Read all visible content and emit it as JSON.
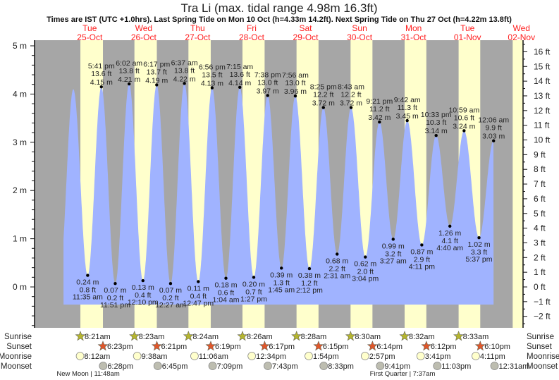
{
  "chart_data": {
    "type": "area",
    "title": "Tra Li (max. tidal range 4.98m 16.3ft)",
    "subtitle": "Times are IST (UTC +1.0hrs). Last Spring Tide on Mon 10 Oct (h=4.33m 14.2ft). Next Spring Tide on Thu 27 Oct (h=4.22m 13.8ft)",
    "days": [
      {
        "dow": "Tue",
        "date": "25-Oct"
      },
      {
        "dow": "Wed",
        "date": "26-Oct"
      },
      {
        "dow": "Thu",
        "date": "27-Oct"
      },
      {
        "dow": "Fri",
        "date": "28-Oct"
      },
      {
        "dow": "Sat",
        "date": "29-Oct"
      },
      {
        "dow": "Sun",
        "date": "30-Oct"
      },
      {
        "dow": "Mon",
        "date": "31-Oct"
      },
      {
        "dow": "Tue",
        "date": "01-Nov"
      },
      {
        "dow": "Wed",
        "date": "02-Nov"
      }
    ],
    "y_left": {
      "unit": "m",
      "ylim": [
        -0.5,
        5.3
      ],
      "ticks": [
        "5 m",
        "4 m",
        "3 m",
        "2 m",
        "1 m",
        "0 m"
      ],
      "tick_values": [
        5,
        4,
        3,
        2,
        1,
        0
      ]
    },
    "y_right": {
      "unit": "ft",
      "ticks": [
        "16 ft",
        "15 ft",
        "14 ft",
        "13 ft",
        "12 ft",
        "11 ft",
        "10 ft",
        "9 ft",
        "8 ft",
        "7 ft",
        "6 ft",
        "5 ft",
        "4 ft",
        "3 ft",
        "2 ft",
        "1 ft",
        "0 ft",
        "−1 ft",
        "−2 ft"
      ],
      "tick_values": [
        16,
        15,
        14,
        13,
        12,
        11,
        10,
        9,
        8,
        7,
        6,
        5,
        4,
        3,
        2,
        1,
        0,
        -1,
        -2
      ]
    },
    "x_unit": "hours since 25-Oct 00:00",
    "extremes": [
      {
        "type": "high",
        "t": 17.68,
        "time": "5:41 pm",
        "ft": "13.6 ft",
        "m": "4.15 m",
        "value": 4.15
      },
      {
        "type": "low",
        "t": 11.58,
        "time": "11:35 am",
        "ft": "0.8 ft",
        "m": "0.24 m",
        "value": 0.24
      },
      {
        "type": "low",
        "t": 23.85,
        "time": "11:51 pm",
        "ft": "0.2 ft",
        "m": "0.07 m",
        "value": 0.07
      },
      {
        "type": "high",
        "t": 30.03,
        "time": "6:02 am",
        "ft": "13.8 ft",
        "m": "4.21 m",
        "value": 4.21
      },
      {
        "type": "low",
        "t": 36.17,
        "time": "12:10 pm",
        "ft": "0.4 ft",
        "m": "0.13 m",
        "value": 0.13
      },
      {
        "type": "high",
        "t": 42.28,
        "time": "6:17 pm",
        "ft": "13.7 ft",
        "m": "4.19 m",
        "value": 4.19
      },
      {
        "type": "low",
        "t": 48.45,
        "time": "12:27 am",
        "ft": "0.2 ft",
        "m": "0.07 m",
        "value": 0.07
      },
      {
        "type": "high",
        "t": 54.62,
        "time": "6:37 am",
        "ft": "13.8 ft",
        "m": "4.22 m",
        "value": 4.22
      },
      {
        "type": "low",
        "t": 60.78,
        "time": "12:47 pm",
        "ft": "0.4 ft",
        "m": "0.11 m",
        "value": 0.11
      },
      {
        "type": "high",
        "t": 66.93,
        "time": "6:56 pm",
        "ft": "13.5 ft",
        "m": "4.13 m",
        "value": 4.13
      },
      {
        "type": "low",
        "t": 73.07,
        "time": "1:04 am",
        "ft": "0.6 ft",
        "m": "0.18 m",
        "value": 0.18
      },
      {
        "type": "high",
        "t": 79.25,
        "time": "7:15 am",
        "ft": "13.6 ft",
        "m": "4.14 m",
        "value": 4.14
      },
      {
        "type": "low",
        "t": 85.45,
        "time": "1:27 pm",
        "ft": "0.7 ft",
        "m": "0.20 m",
        "value": 0.2
      },
      {
        "type": "high",
        "t": 91.63,
        "time": "7:38 pm",
        "ft": "13.0 ft",
        "m": "3.97 m",
        "value": 3.97
      },
      {
        "type": "low",
        "t": 97.75,
        "time": "1:45 am",
        "ft": "1.3 ft",
        "m": "0.39 m",
        "value": 0.39
      },
      {
        "type": "high",
        "t": 103.93,
        "time": "7:56 am",
        "ft": "13.0 ft",
        "m": "3.96 m",
        "value": 3.96
      },
      {
        "type": "low",
        "t": 110.2,
        "time": "2:12 pm",
        "ft": "1.2 ft",
        "m": "0.38 m",
        "value": 0.38
      },
      {
        "type": "high",
        "t": 116.42,
        "time": "8:25 pm",
        "ft": "12.2 ft",
        "m": "3.72 m",
        "value": 3.72
      },
      {
        "type": "low",
        "t": 122.52,
        "time": "2:31 am",
        "ft": "2.2 ft",
        "m": "0.68 m",
        "value": 0.68
      },
      {
        "type": "high",
        "t": 128.72,
        "time": "8:43 am",
        "ft": "12.2 ft",
        "m": "3.72 m",
        "value": 3.72
      },
      {
        "type": "low",
        "t": 135.07,
        "time": "3:04 pm",
        "ft": "2.0 ft",
        "m": "0.62 m",
        "value": 0.62
      },
      {
        "type": "high",
        "t": 141.35,
        "time": "9:21 pm",
        "ft": "11.2 ft",
        "m": "3.42 m",
        "value": 3.42
      },
      {
        "type": "low",
        "t": 147.45,
        "time": "3:27 am",
        "ft": "3.2 ft",
        "m": "0.99 m",
        "value": 0.99
      },
      {
        "type": "high",
        "t": 153.7,
        "time": "9:42 am",
        "ft": "11.3 ft",
        "m": "3.45 m",
        "value": 3.45
      },
      {
        "type": "low",
        "t": 160.18,
        "time": "4:11 pm",
        "ft": "2.9 ft",
        "m": "0.87 m",
        "value": 0.87
      },
      {
        "type": "high",
        "t": 166.55,
        "time": "10:33 pm",
        "ft": "10.3 ft",
        "m": "3.14 m",
        "value": 3.14
      },
      {
        "type": "low",
        "t": 172.67,
        "time": "4:40 am",
        "ft": "4.1 ft",
        "m": "1.26 m",
        "value": 1.26
      },
      {
        "type": "high",
        "t": 178.98,
        "time": "10:59 am",
        "ft": "10.6 ft",
        "m": "3.24 m",
        "value": 3.24
      },
      {
        "type": "low",
        "t": 185.62,
        "time": "5:37 pm",
        "ft": "3.3 ft",
        "m": "1.02 m",
        "value": 1.02
      },
      {
        "type": "high",
        "t": 192.1,
        "time": "12:06 am",
        "ft": "9.9 ft",
        "m": "3.03 m",
        "value": 3.03
      }
    ],
    "unlabeled_extremes": [
      {
        "type": "low",
        "t": -1.0,
        "value": 0.2
      },
      {
        "type": "high",
        "t": 5.2,
        "value": 4.1
      }
    ],
    "sun_moon": {
      "row_labels": {
        "sunrise": "Sunrise",
        "sunset": "Sunset",
        "moonrise": "Moonrise",
        "moonset": "Moonset"
      },
      "sunrise": [
        {
          "t": 8.35,
          "label": "8:21am"
        },
        {
          "t": 32.38,
          "label": "8:23am"
        },
        {
          "t": 56.4,
          "label": "8:24am"
        },
        {
          "t": 80.43,
          "label": "8:26am"
        },
        {
          "t": 104.47,
          "label": "8:28am"
        },
        {
          "t": 128.5,
          "label": "8:30am"
        },
        {
          "t": 152.53,
          "label": "8:32am"
        },
        {
          "t": 176.55,
          "label": "8:33am"
        }
      ],
      "sunset": [
        {
          "t": 18.38,
          "label": "6:23pm"
        },
        {
          "t": 42.35,
          "label": "6:21pm"
        },
        {
          "t": 66.32,
          "label": "6:19pm"
        },
        {
          "t": 90.28,
          "label": "6:17pm"
        },
        {
          "t": 114.25,
          "label": "6:15pm"
        },
        {
          "t": 138.23,
          "label": "6:14pm"
        },
        {
          "t": 162.2,
          "label": "6:12pm"
        },
        {
          "t": 186.17,
          "label": "6:10pm"
        }
      ],
      "moonrise": [
        {
          "t": 8.2,
          "label": "8:12am"
        },
        {
          "t": 33.63,
          "label": "9:38am"
        },
        {
          "t": 59.1,
          "label": "11:06am"
        },
        {
          "t": 84.57,
          "label": "12:34pm"
        },
        {
          "t": 109.9,
          "label": "1:54pm"
        },
        {
          "t": 134.95,
          "label": "2:57pm"
        },
        {
          "t": 159.68,
          "label": "3:41pm"
        },
        {
          "t": 184.18,
          "label": "4:11pm"
        }
      ],
      "moonset": [
        {
          "t": 18.47,
          "label": "6:28pm"
        },
        {
          "t": 42.75,
          "label": "6:45pm"
        },
        {
          "t": 67.15,
          "label": "7:09pm"
        },
        {
          "t": 91.72,
          "label": "7:43pm"
        },
        {
          "t": 116.55,
          "label": "8:33pm"
        },
        {
          "t": 141.68,
          "label": "9:41pm"
        },
        {
          "t": 167.05,
          "label": "11:03pm"
        },
        {
          "t": 192.52,
          "label": "12:31am"
        }
      ],
      "phases": [
        {
          "t": 11.8,
          "label": "New Moon | 11:48am"
        },
        {
          "t": 151.6,
          "label": "First Quarter | 7:37am"
        }
      ]
    },
    "colors": {
      "night": "#a6a6a6",
      "day": "#ffffcc",
      "water": "#a0b3ff",
      "day_label": "#ff2020",
      "sun_rise": "#b5b52e",
      "sun_set": "#e0562a",
      "moon_rise": "#ffffcc",
      "moon_set": "#bdbdb0"
    }
  }
}
